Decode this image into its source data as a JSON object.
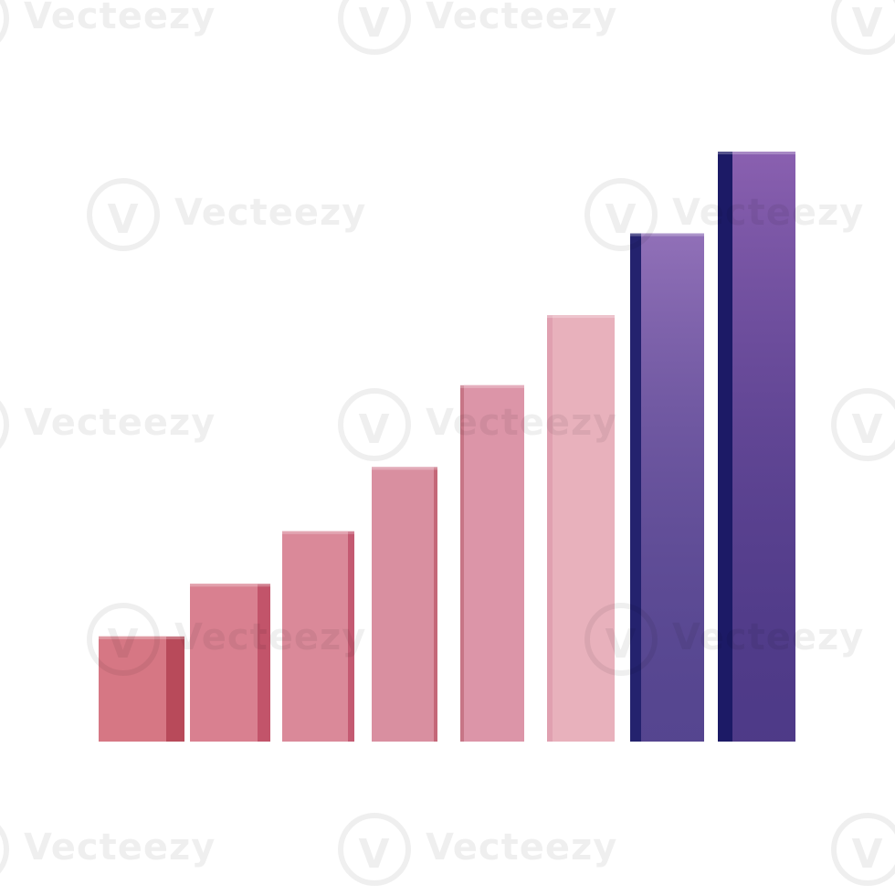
{
  "chart_data": {
    "type": "bar",
    "style": "3d",
    "title": "",
    "xlabel": "",
    "ylabel": "",
    "categories": [
      "",
      "",
      "",
      "",
      "",
      "",
      "",
      ""
    ],
    "values": [
      18,
      27,
      36,
      47,
      61,
      73,
      87,
      101
    ],
    "ylim": [
      0,
      101
    ],
    "grid": false,
    "legend": "none",
    "colors": {
      "front": [
        "#d67784",
        "#d98090",
        "#da8999",
        "#d98fa0",
        "#dc95a8",
        "#e8b1bc",
        "#9170b8",
        "#8a60b0"
      ],
      "side": [
        "#b84a5a",
        "#c2546a",
        "#c45a72",
        "#c46778",
        "#c77586",
        "#e0a0b0",
        "#24226e",
        "#1c1a66"
      ]
    }
  },
  "watermark": {
    "glyph": "V",
    "text": "Vecteezy"
  }
}
